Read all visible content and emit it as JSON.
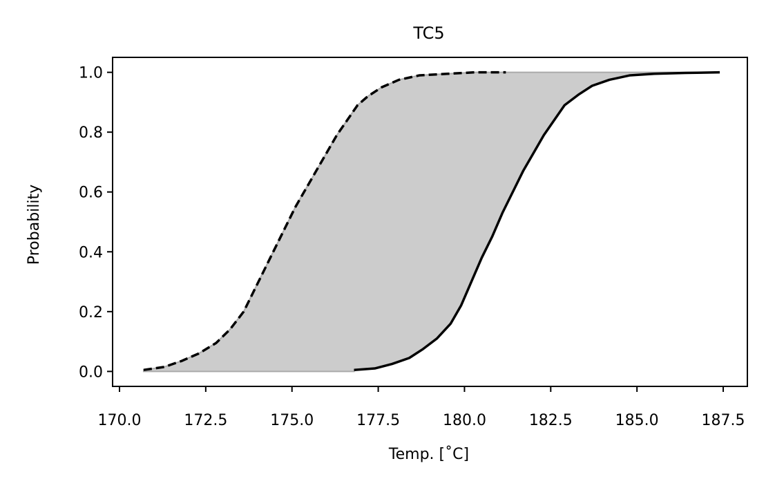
{
  "chart_data": {
    "type": "area",
    "title": "TC5",
    "xlabel": "Temp. [˚C]",
    "ylabel": "Probability",
    "xlim": [
      169.8,
      188.2
    ],
    "ylim": [
      -0.05,
      1.05
    ],
    "xticks": [
      170.0,
      172.5,
      175.0,
      177.5,
      180.0,
      182.5,
      185.0,
      187.5
    ],
    "xtick_labels": [
      "170.0",
      "172.5",
      "175.0",
      "177.5",
      "180.0",
      "182.5",
      "185.0",
      "187.5"
    ],
    "yticks": [
      0.0,
      0.2,
      0.4,
      0.6,
      0.8,
      1.0
    ],
    "ytick_labels": [
      "0.0",
      "0.2",
      "0.4",
      "0.6",
      "0.8",
      "1.0"
    ],
    "grid": false,
    "band_color": "#cccccc",
    "series": [
      {
        "style": "dashed",
        "color": "#000000",
        "x": [
          170.7,
          171.3,
          171.8,
          172.3,
          172.8,
          173.2,
          173.6,
          173.9,
          174.2,
          174.5,
          174.8,
          175.1,
          175.4,
          175.7,
          176.0,
          176.3,
          176.6,
          176.9,
          177.2,
          177.6,
          178.1,
          178.7,
          179.5,
          180.3,
          181.2
        ],
        "y": [
          0.005,
          0.015,
          0.035,
          0.06,
          0.095,
          0.14,
          0.2,
          0.27,
          0.34,
          0.41,
          0.48,
          0.55,
          0.61,
          0.67,
          0.73,
          0.79,
          0.84,
          0.89,
          0.92,
          0.95,
          0.975,
          0.99,
          0.995,
          1.0,
          1.0
        ]
      },
      {
        "style": "solid",
        "color": "#000000",
        "x": [
          176.8,
          177.4,
          177.9,
          178.4,
          178.8,
          179.2,
          179.6,
          179.9,
          180.2,
          180.5,
          180.8,
          181.1,
          181.4,
          181.7,
          182.0,
          182.3,
          182.6,
          182.9,
          183.3,
          183.7,
          184.2,
          184.8,
          185.5,
          186.4,
          187.4
        ],
        "y": [
          0.005,
          0.01,
          0.025,
          0.045,
          0.075,
          0.11,
          0.16,
          0.22,
          0.3,
          0.38,
          0.45,
          0.53,
          0.6,
          0.67,
          0.73,
          0.79,
          0.84,
          0.89,
          0.925,
          0.955,
          0.975,
          0.99,
          0.995,
          0.998,
          1.0
        ]
      }
    ]
  }
}
